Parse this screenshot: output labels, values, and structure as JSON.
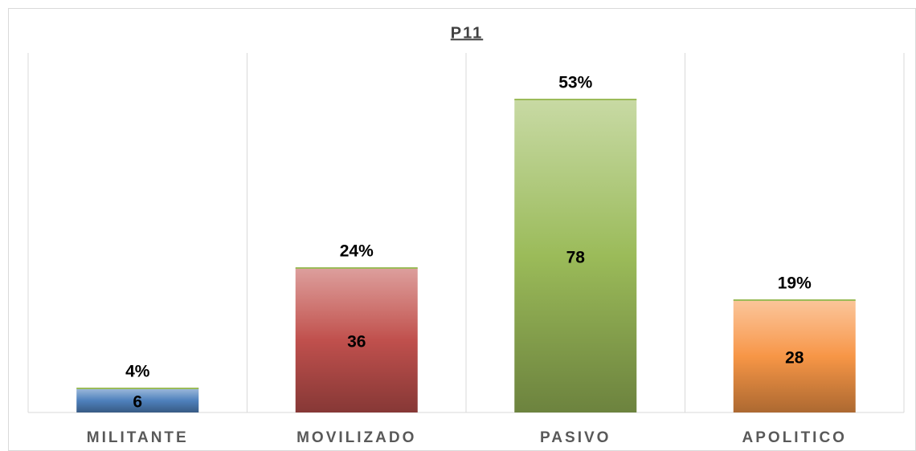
{
  "chart_data": {
    "type": "bar",
    "title": "P11",
    "categories": [
      "MILITANTE",
      "MOVILIZADO",
      "PASIVO",
      "APOLITICO"
    ],
    "values": [
      6,
      36,
      78,
      28
    ],
    "percent_values": [
      4,
      24,
      53,
      19
    ],
    "percent_labels": [
      "4%",
      "24%",
      "53%",
      "19%"
    ],
    "colors": [
      "#4f81bd",
      "#c0504d",
      "#9bbb59",
      "#f79646"
    ],
    "ylim": [
      0,
      90
    ]
  }
}
